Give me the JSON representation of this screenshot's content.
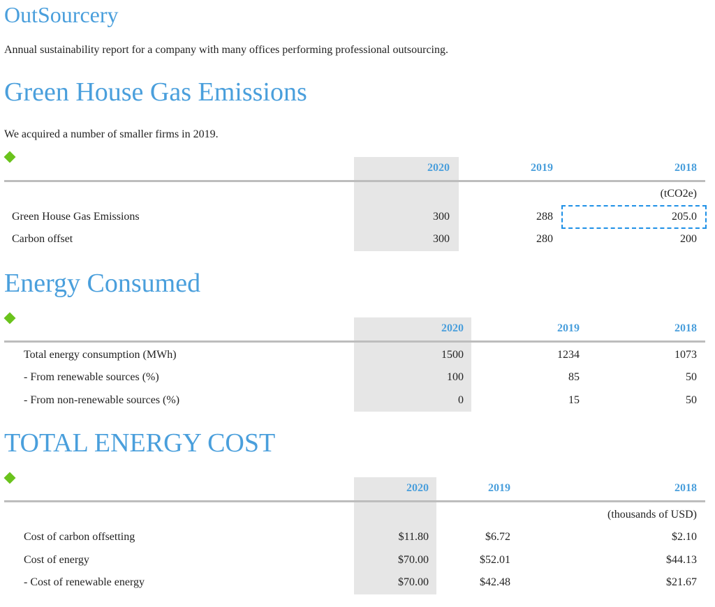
{
  "title": "OutSourcery",
  "intro": "Annual sustainability report for a company with many offices performing professional outsourcing.",
  "ghg": {
    "heading": "Green House Gas Emissions",
    "note": "We acquired a number of smaller firms in 2019.",
    "years": [
      "2020",
      "2019",
      "2018"
    ],
    "unit": "(tCO2e)",
    "rows": [
      {
        "label": "Green House Gas Emissions",
        "values": [
          "300",
          "288",
          "205.0"
        ]
      },
      {
        "label": "Carbon offset",
        "values": [
          "300",
          "280",
          "200"
        ]
      }
    ]
  },
  "energy": {
    "heading": "Energy Consumed",
    "years": [
      "2020",
      "2019",
      "2018"
    ],
    "rows": [
      {
        "label": "Total energy consumption (MWh)",
        "values": [
          "1500",
          "1234",
          "1073"
        ]
      },
      {
        "label": "- From renewable sources (%)",
        "values": [
          "100",
          "85",
          "50"
        ]
      },
      {
        "label": "- From non-renewable sources (%)",
        "values": [
          "0",
          "15",
          "50"
        ]
      }
    ]
  },
  "cost": {
    "heading": "TOTAL ENERGY COST",
    "years": [
      "2020",
      "2019",
      "2018"
    ],
    "unit": "(thousands of USD)",
    "rows": [
      {
        "label": "Cost of carbon offsetting",
        "values": [
          "$11.80",
          "$6.72",
          "$2.10"
        ]
      },
      {
        "label": "Cost of energy",
        "values": [
          "$70.00",
          "$52.01",
          "$44.13"
        ]
      },
      {
        "label": "- Cost of renewable energy",
        "values": [
          "$70.00",
          "$42.48",
          "$21.67"
        ]
      }
    ]
  },
  "colors": {
    "heading": "#4a9fdc",
    "bullet": "#6ac31c",
    "highlight": "#e6e6e6",
    "selection": "#1e90e6"
  }
}
